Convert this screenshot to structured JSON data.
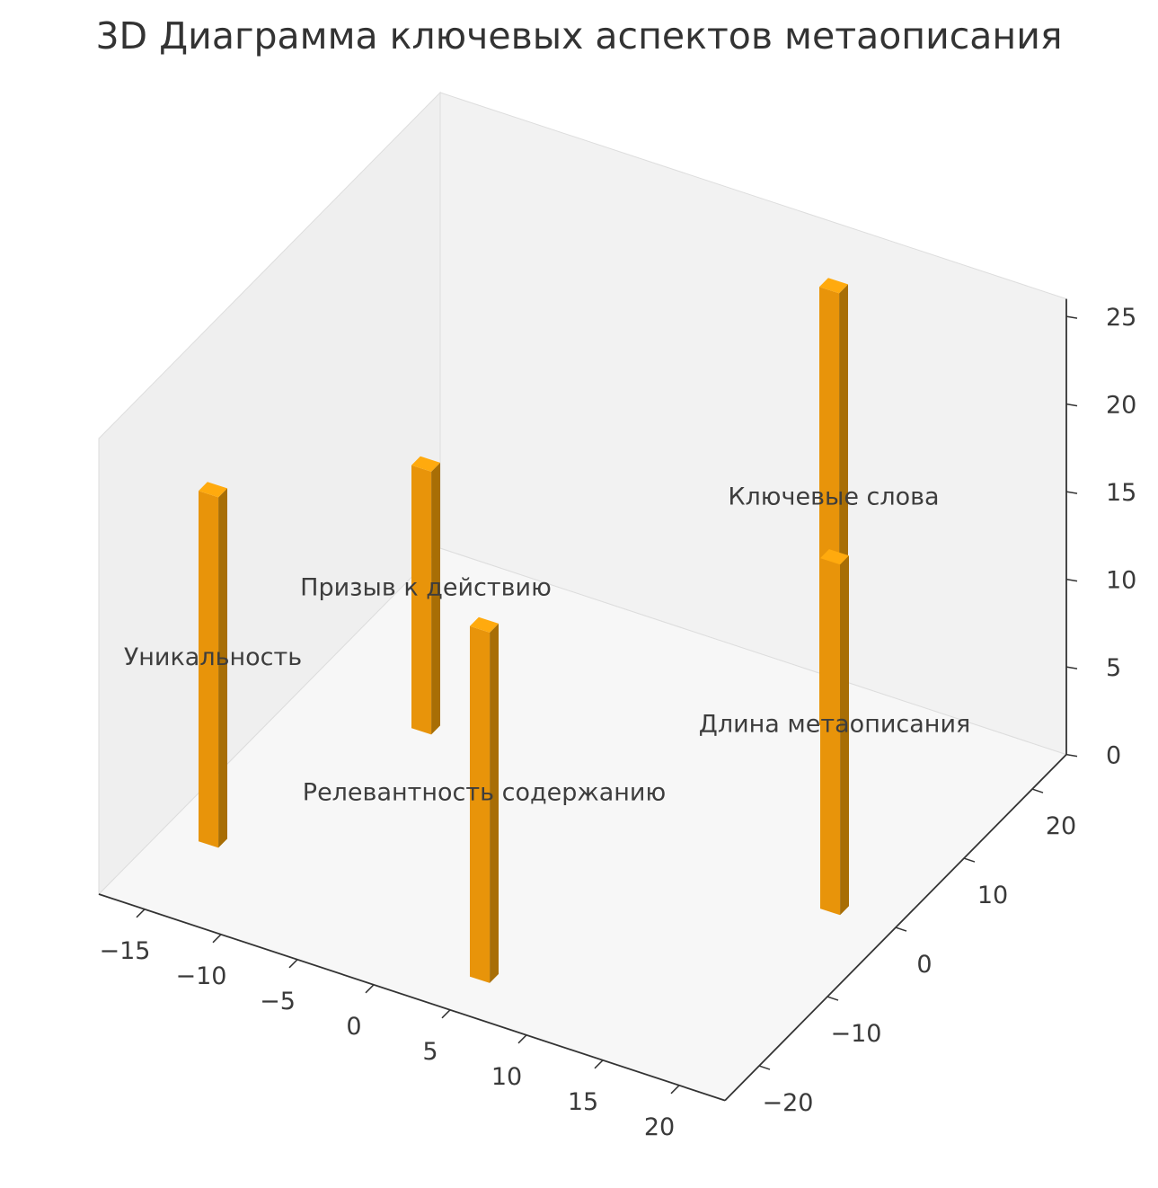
{
  "chart_data": {
    "type": "bar",
    "projection": "3d",
    "title": "3D Диаграмма ключевых аспектов метаописания",
    "bars": [
      {
        "label": "Уникальность",
        "x": -15,
        "y": -15,
        "height": 20
      },
      {
        "label": "Призыв к действию",
        "x": -10,
        "y": 5,
        "height": 15
      },
      {
        "label": "Релевантность содержанию",
        "x": 5,
        "y": -20,
        "height": 20
      },
      {
        "label": "Ключевые слова",
        "x": 10,
        "y": 20,
        "height": 25
      },
      {
        "label": "Длина метаописания",
        "x": 19,
        "y": 0,
        "height": 20
      }
    ],
    "bar_colors": {
      "front": "#e8940a",
      "side": "#a86e05",
      "top": "#ffaa0e"
    },
    "xticks": [
      -15,
      -10,
      -5,
      0,
      5,
      10,
      15,
      20
    ],
    "yticks": [
      -20,
      -10,
      0,
      10,
      20
    ],
    "zticks": [
      0,
      5,
      10,
      15,
      20,
      25
    ],
    "xlim": [
      -18,
      23
    ],
    "ylim": [
      -25,
      25
    ],
    "zlim": [
      0,
      26
    ],
    "grid": false,
    "legend": false,
    "label_placement": "centered-on-bar-at-half-height",
    "text_color": "#3a3a3a"
  }
}
